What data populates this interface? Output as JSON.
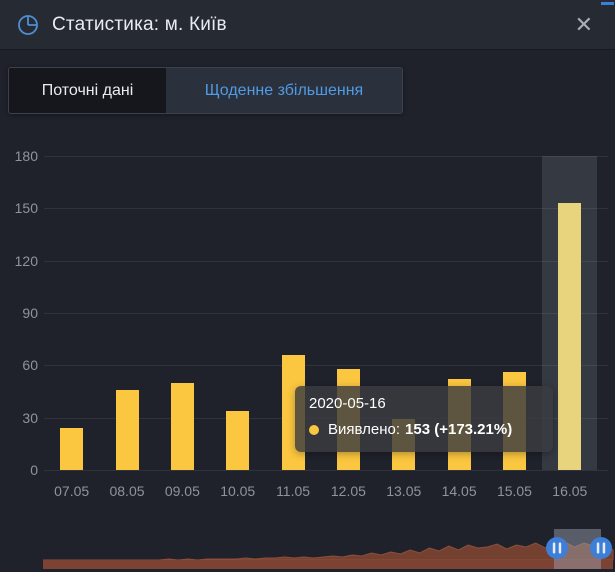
{
  "window": {
    "title": "Статистика: м. Київ",
    "close_glyph": "✕"
  },
  "tabs": [
    {
      "label": "Поточні дані",
      "active": false
    },
    {
      "label": "Щоденне збільшення",
      "active": true
    }
  ],
  "chart_data": {
    "type": "bar",
    "title": "Щоденне збільшення — Виявлено",
    "categories": [
      "07.05",
      "08.05",
      "09.05",
      "10.05",
      "11.05",
      "12.05",
      "13.05",
      "14.05",
      "15.05",
      "16.05"
    ],
    "values": [
      24,
      46,
      50,
      34,
      66,
      58,
      29,
      52,
      56,
      153
    ],
    "series_name": "Виявлено",
    "xlabel": "",
    "ylabel": "",
    "ylim": [
      0,
      180
    ],
    "yticks": [
      0,
      30,
      60,
      90,
      120,
      150,
      180
    ],
    "grid": true,
    "legend_position": "none",
    "bar_color": "#fbc640",
    "highlighted_index": 9,
    "highlighted_bar_color": "#e9d47e",
    "highlight_column_color": "rgba(190,198,212,0.14)"
  },
  "tooltip": {
    "title": "2020-05-16",
    "label": "Виявлено:",
    "value": "153 (+173.21%)",
    "dot_color": "#fbc640"
  },
  "navigator": {
    "type": "area",
    "area_color": "#74402f",
    "stroke_color": "#8f4e3c",
    "baseline_color": "#7c4335",
    "selection_color": "rgba(158,166,182,0.45)",
    "handle_color": "#3d7ed8",
    "selection": {
      "x": 554,
      "width": 47
    },
    "values": [
      0,
      0,
      0,
      0,
      0,
      0,
      0,
      0,
      0,
      0,
      0,
      0,
      0,
      1,
      0,
      1,
      0,
      1,
      1,
      1,
      1,
      2,
      1,
      2,
      2,
      3,
      2,
      3,
      2,
      3,
      4,
      3,
      5,
      4,
      7,
      5,
      8,
      6,
      10,
      7,
      12,
      9,
      14,
      10,
      15,
      12,
      13,
      16,
      11,
      15,
      13,
      17,
      12,
      16,
      18,
      13,
      17,
      14,
      18,
      10
    ]
  },
  "colors": {
    "accent_blue": "#4f9be4",
    "header_bg": "#262a33",
    "body_bg": "#1f222b",
    "bar_yellow": "#fbc640",
    "navigator_red": "#7c4335",
    "handle_blue": "#3d7ed8",
    "axis_text": "#8f939c"
  }
}
